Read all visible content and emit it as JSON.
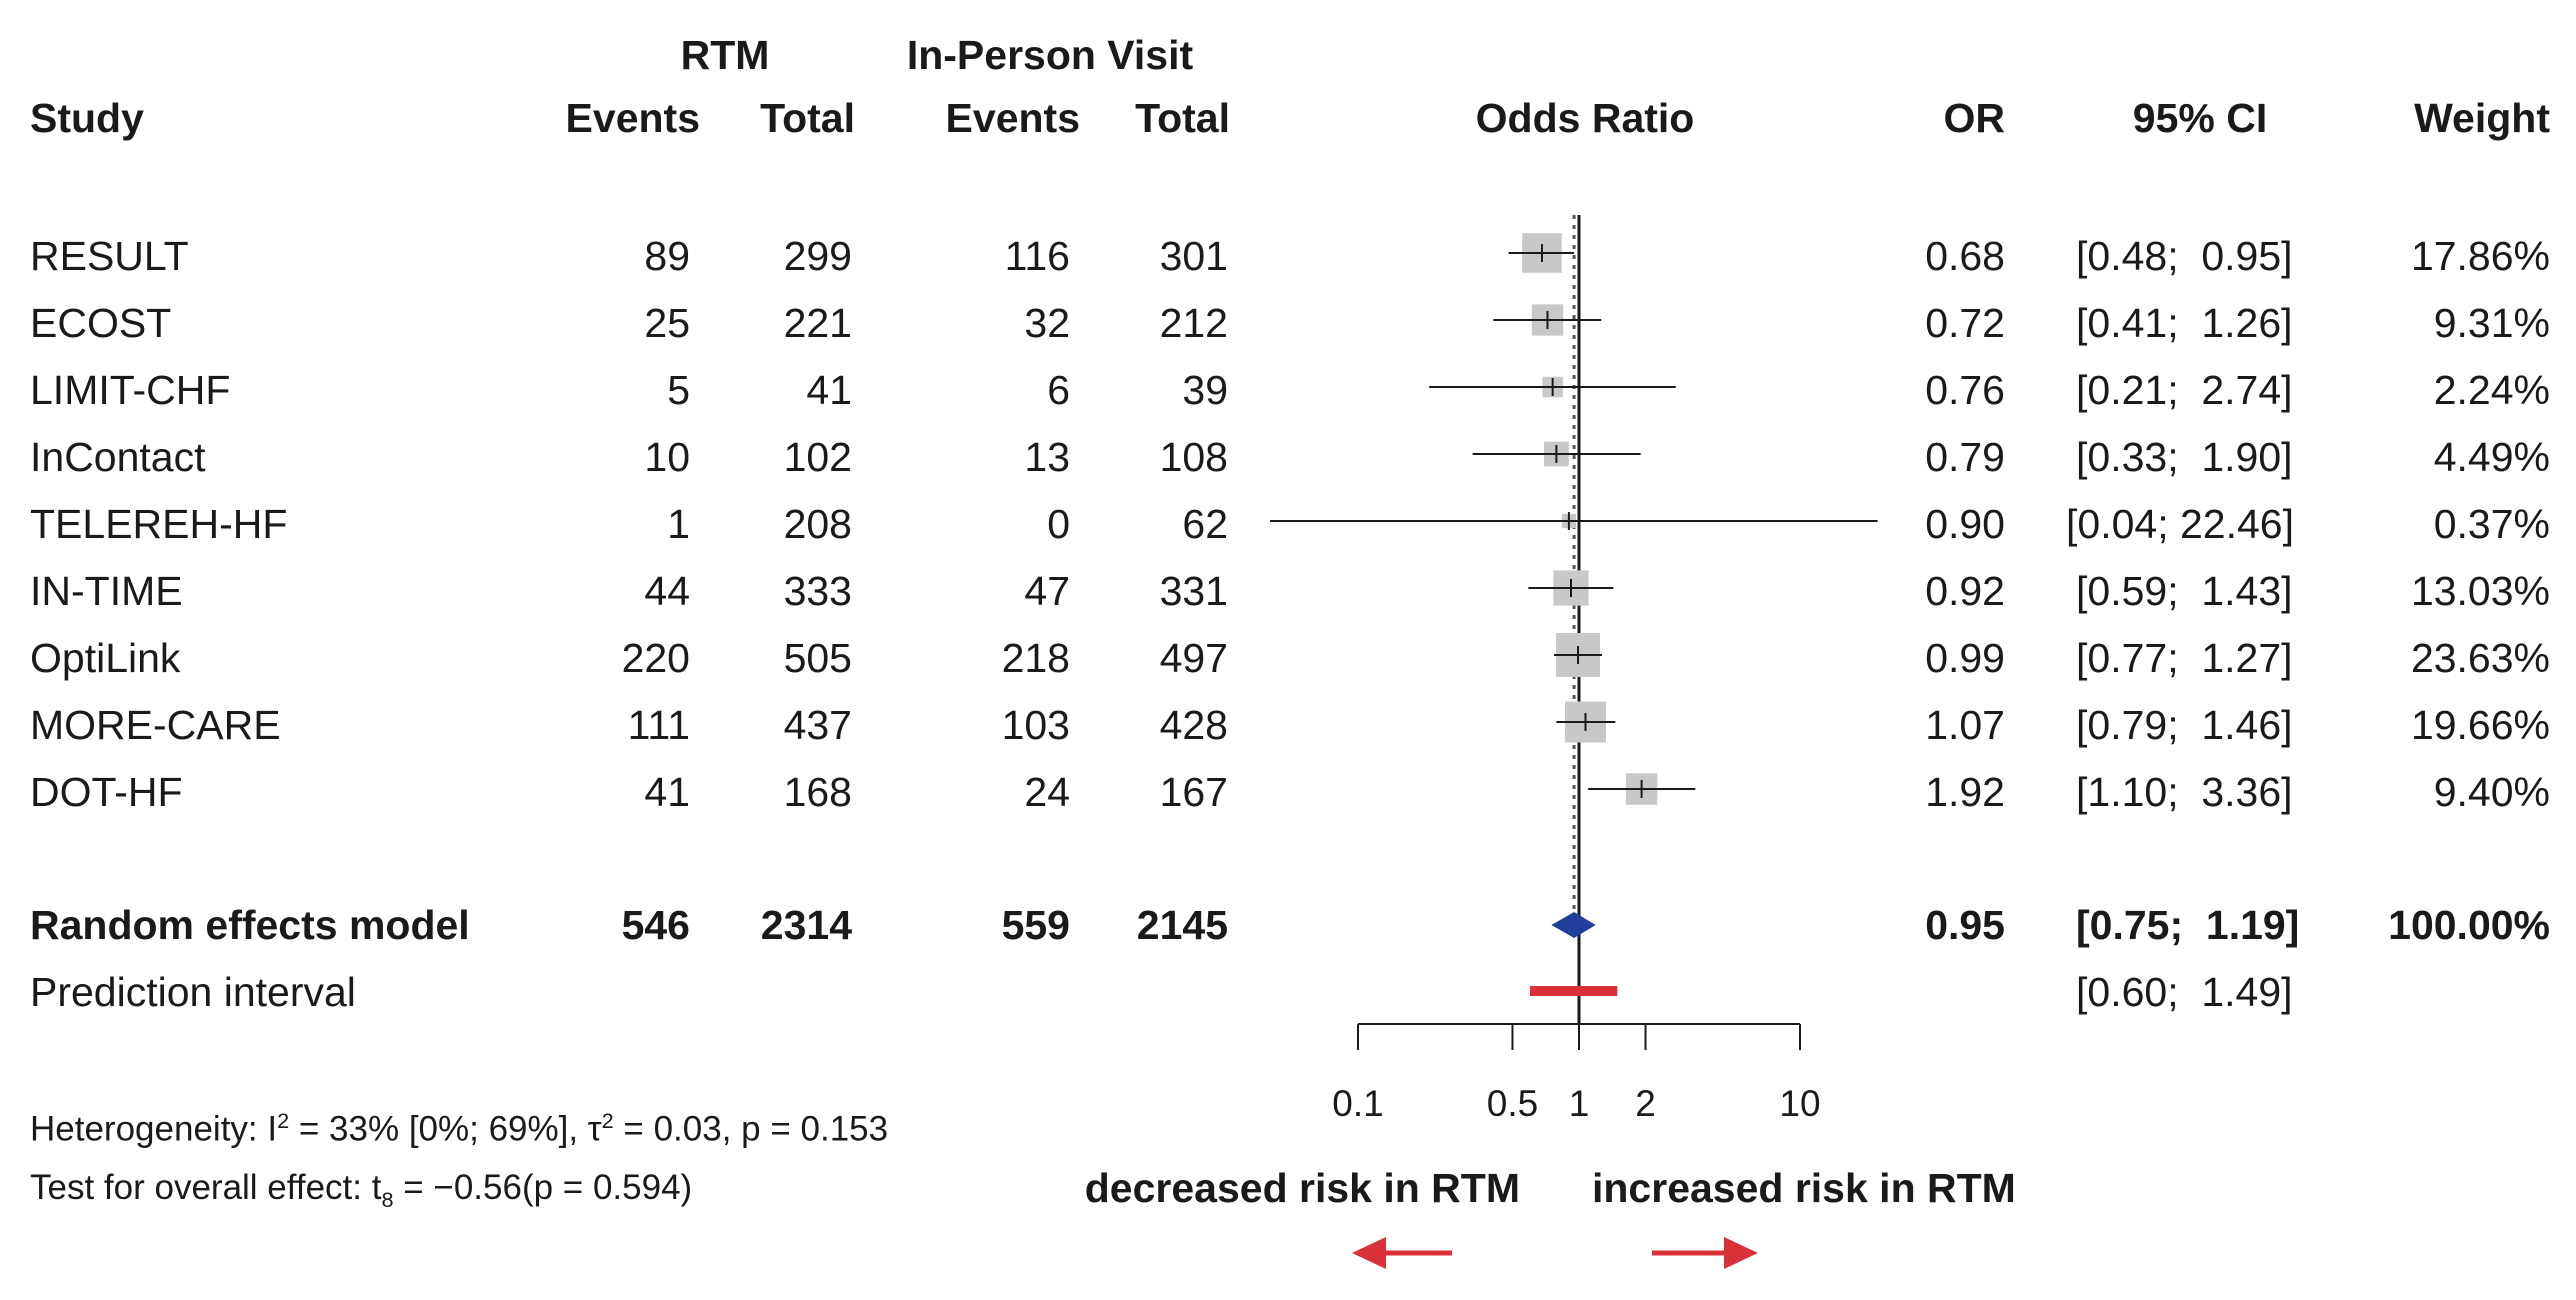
{
  "header": {
    "group1": "RTM",
    "group2": "In-Person Visit",
    "study": "Study",
    "events": "Events",
    "total": "Total",
    "odds_ratio": "Odds Ratio",
    "or": "OR",
    "ci": "95% CI",
    "weight": "Weight"
  },
  "rows": [
    {
      "study": "RESULT",
      "e1": "89",
      "n1": "299",
      "e2": "116",
      "n2": "301",
      "or_text": "0.68",
      "ci_text": "[0.48;  0.95]",
      "weight_text": "17.86%"
    },
    {
      "study": "ECOST",
      "e1": "25",
      "n1": "221",
      "e2": "32",
      "n2": "212",
      "or_text": "0.72",
      "ci_text": "[0.41;  1.26]",
      "weight_text": "9.31%"
    },
    {
      "study": "LIMIT-CHF",
      "e1": "5",
      "n1": "41",
      "e2": "6",
      "n2": "39",
      "or_text": "0.76",
      "ci_text": "[0.21;  2.74]",
      "weight_text": "2.24%"
    },
    {
      "study": "InContact",
      "e1": "10",
      "n1": "102",
      "e2": "13",
      "n2": "108",
      "or_text": "0.79",
      "ci_text": "[0.33;  1.90]",
      "weight_text": "4.49%"
    },
    {
      "study": "TELEREH-HF",
      "e1": "1",
      "n1": "208",
      "e2": "0",
      "n2": "62",
      "or_text": "0.90",
      "ci_text": "[0.04; 22.46]",
      "weight_text": "0.37%"
    },
    {
      "study": "IN-TIME",
      "e1": "44",
      "n1": "333",
      "e2": "47",
      "n2": "331",
      "or_text": "0.92",
      "ci_text": "[0.59;  1.43]",
      "weight_text": "13.03%"
    },
    {
      "study": "OptiLink",
      "e1": "220",
      "n1": "505",
      "e2": "218",
      "n2": "497",
      "or_text": "0.99",
      "ci_text": "[0.77;  1.27]",
      "weight_text": "23.63%"
    },
    {
      "study": "MORE-CARE",
      "e1": "111",
      "n1": "437",
      "e2": "103",
      "n2": "428",
      "or_text": "1.07",
      "ci_text": "[0.79;  1.46]",
      "weight_text": "19.66%"
    },
    {
      "study": "DOT-HF",
      "e1": "41",
      "n1": "168",
      "e2": "24",
      "n2": "167",
      "or_text": "1.92",
      "ci_text": "[1.10;  3.36]",
      "weight_text": "9.40%"
    }
  ],
  "summary": {
    "label": "Random effects model",
    "e1": "546",
    "n1": "2314",
    "e2": "559",
    "n2": "2145",
    "or_text": "0.95",
    "ci_text": "[0.75;  1.19]",
    "weight_text": "100.00%"
  },
  "prediction": {
    "label": "Prediction interval",
    "ci_text": "[0.60;  1.49]"
  },
  "footer": {
    "het_prefix": "Heterogeneity: I",
    "het_sup": "2",
    "het_mid": " = 33% [0%; 69%], τ",
    "het_tau_sup": "2",
    "het_suffix": " = 0.03, p = 0.153",
    "test_prefix": "Test for overall effect: t",
    "test_sub": "8",
    "test_suffix": " = −0.56(p = 0.594)"
  },
  "direction": {
    "left": "decreased risk in RTM",
    "right": "increased risk in RTM"
  },
  "colors": {
    "box": "#c8c8c8",
    "line": "#1a1a1a",
    "diamond": "#1f3f9a",
    "prediction": "#d9303a",
    "arrow": "#d9303a"
  },
  "chart_data": {
    "type": "forest",
    "scale": "log",
    "xlim": [
      0.1,
      10
    ],
    "xticks": [
      0.1,
      0.5,
      1,
      2,
      10
    ],
    "xtick_labels": [
      "0.1",
      "0.5",
      "1",
      "2",
      "10"
    ],
    "reference_line": 1,
    "pooled_line": 0.95,
    "studies": [
      {
        "name": "RESULT",
        "or": 0.68,
        "lower": 0.48,
        "upper": 0.95,
        "weight": 17.86
      },
      {
        "name": "ECOST",
        "or": 0.72,
        "lower": 0.41,
        "upper": 1.26,
        "weight": 9.31
      },
      {
        "name": "LIMIT-CHF",
        "or": 0.76,
        "lower": 0.21,
        "upper": 2.74,
        "weight": 2.24
      },
      {
        "name": "InContact",
        "or": 0.79,
        "lower": 0.33,
        "upper": 1.9,
        "weight": 4.49
      },
      {
        "name": "TELEREH-HF",
        "or": 0.9,
        "lower": 0.04,
        "upper": 22.46,
        "weight": 0.37
      },
      {
        "name": "IN-TIME",
        "or": 0.92,
        "lower": 0.59,
        "upper": 1.43,
        "weight": 13.03
      },
      {
        "name": "OptiLink",
        "or": 0.99,
        "lower": 0.77,
        "upper": 1.27,
        "weight": 23.63
      },
      {
        "name": "MORE-CARE",
        "or": 1.07,
        "lower": 0.79,
        "upper": 1.46,
        "weight": 19.66
      },
      {
        "name": "DOT-HF",
        "or": 1.92,
        "lower": 1.1,
        "upper": 3.36,
        "weight": 9.4
      }
    ],
    "pooled": {
      "name": "Random effects model",
      "or": 0.95,
      "lower": 0.75,
      "upper": 1.19
    },
    "prediction_interval": {
      "lower": 0.6,
      "upper": 1.49
    }
  }
}
